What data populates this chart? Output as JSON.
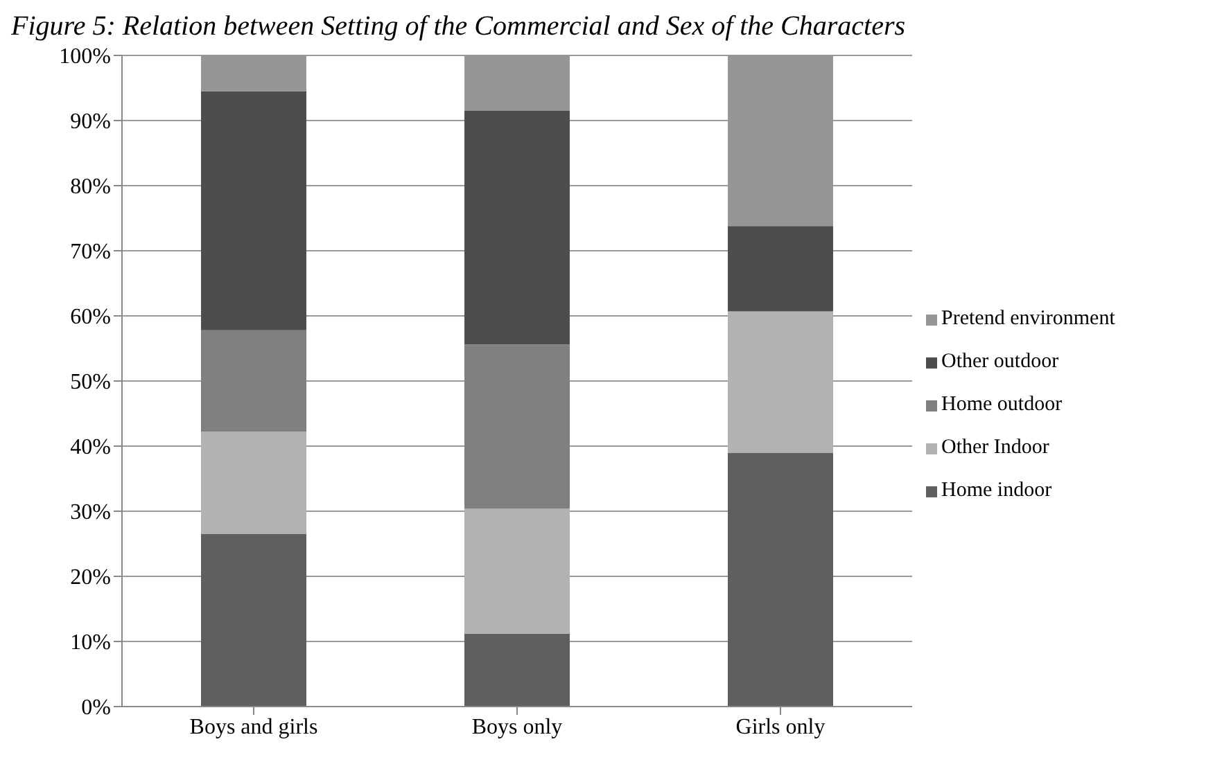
{
  "chart_data": {
    "type": "bar",
    "title": "Figure 5: Relation between Setting of the Commercial and Sex of the Characters",
    "categories": [
      "Boys and girls",
      "Boys only",
      "Girls only"
    ],
    "stacked": true,
    "series": [
      {
        "name": "Home indoor",
        "color": "#5f5f5f",
        "values": [
          26.5,
          11.2,
          39.0
        ]
      },
      {
        "name": "Other Indoor",
        "color": "#b2b2b2",
        "values": [
          15.7,
          19.2,
          21.7
        ]
      },
      {
        "name": "Home outdoor",
        "color": "#808080",
        "values": [
          15.6,
          25.2,
          0
        ]
      },
      {
        "name": "Other outdoor",
        "color": "#4d4d4d",
        "values": [
          36.7,
          35.9,
          13.1
        ]
      },
      {
        "name": "Pretend environment",
        "color": "#969696",
        "values": [
          5.5,
          8.5,
          26.2
        ]
      }
    ],
    "ylim": [
      0,
      100
    ],
    "yticks": [
      {
        "value": 0,
        "label": "0%"
      },
      {
        "value": 10,
        "label": "10%"
      },
      {
        "value": 20,
        "label": "20%"
      },
      {
        "value": 30,
        "label": "30%"
      },
      {
        "value": 40,
        "label": "40%"
      },
      {
        "value": 50,
        "label": "50%"
      },
      {
        "value": 60,
        "label": "60%"
      },
      {
        "value": 70,
        "label": "70%"
      },
      {
        "value": 80,
        "label": "80%"
      },
      {
        "value": 90,
        "label": "90%"
      },
      {
        "value": 100,
        "label": "100%"
      }
    ],
    "grid": "y",
    "legend": "right"
  }
}
